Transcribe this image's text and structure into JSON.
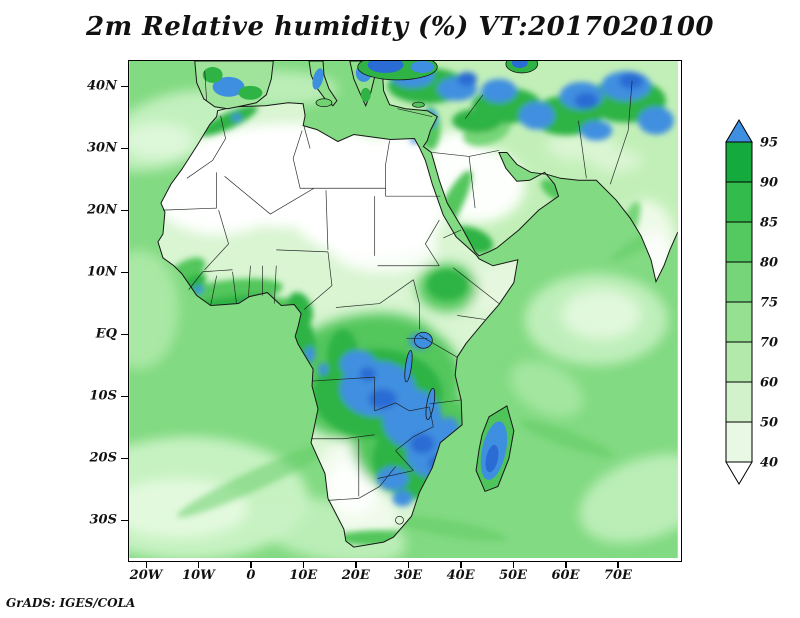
{
  "title": "2m Relative humidity (%) VT:2017020100",
  "attribution": "GrADS: IGES/COLA",
  "map": {
    "x_tick_labels": [
      "20W",
      "10W",
      "0",
      "10E",
      "20E",
      "30E",
      "40E",
      "50E",
      "60E",
      "70E"
    ],
    "y_tick_labels": [
      "40N",
      "30N",
      "20N",
      "10N",
      "EQ",
      "10S",
      "20S",
      "30S"
    ]
  },
  "colorbar": {
    "tick_labels_bottom_to_top": [
      "40",
      "50",
      "60",
      "70",
      "75",
      "80",
      "85",
      "90",
      "95"
    ],
    "segment_colors_bottom_to_top": [
      "#e8f8e4",
      "#d2f2cc",
      "#b4e9ac",
      "#96e092",
      "#76d578",
      "#54c95f",
      "#33bb4b",
      "#14aa3e"
    ],
    "below_min_color": "#ffffff",
    "above_max_color": "#3f8fe0"
  },
  "chart_data": {
    "type": "heatmap",
    "title": "2m Relative humidity (%) VT:2017020100",
    "variable": "2m relative humidity",
    "units": "%",
    "valid_time": "2017020100",
    "projection": "lat-lon map of Africa, Middle East and surrounding oceans",
    "x_ticks": [
      "20W",
      "10W",
      "0",
      "10E",
      "20E",
      "30E",
      "40E",
      "50E",
      "60E",
      "70E"
    ],
    "y_ticks": [
      "40N",
      "30N",
      "20N",
      "10N",
      "EQ",
      "10S",
      "20S",
      "30S"
    ],
    "contour_levels": [
      40,
      50,
      60,
      70,
      75,
      80,
      85,
      90,
      95
    ],
    "palette": [
      {
        "range": "< 40",
        "color": "#ffffff"
      },
      {
        "range": "40-50",
        "color": "#e8f8e4"
      },
      {
        "range": "50-60",
        "color": "#d2f2cc"
      },
      {
        "range": "60-70",
        "color": "#b4e9ac"
      },
      {
        "range": "70-75",
        "color": "#96e092"
      },
      {
        "range": "75-80",
        "color": "#76d578"
      },
      {
        "range": "80-85",
        "color": "#54c95f"
      },
      {
        "range": "85-90",
        "color": "#33bb4b"
      },
      {
        "range": "90-95",
        "color": "#14aa3e"
      },
      {
        "range": "> 95",
        "color": "#3f8fe0"
      }
    ],
    "legend_position": "right",
    "grid": false,
    "field_summary": [
      {
        "region": "Sahara and interior North Africa",
        "value_pct": "< 40 (white)"
      },
      {
        "region": "Arabian Peninsula interior",
        "value_pct": "< 40 - 50"
      },
      {
        "region": "Sahel transition band",
        "value_pct": "40 - 70"
      },
      {
        "region": "Gulf of Guinea coastal strip",
        "value_pct": "85 - 95"
      },
      {
        "region": "Congo basin, Zambia, Zimbabwe, Mozambique",
        "value_pct": "90 - > 95 (blue patches)"
      },
      {
        "region": "Madagascar interior",
        "value_pct": "> 95"
      },
      {
        "region": "Ethiopian highlands",
        "value_pct": "85 - 95"
      },
      {
        "region": "Horn of Africa / Somalia",
        "value_pct": "50 - 70"
      },
      {
        "region": "Kalahari / Namibia",
        "value_pct": "40 - 60"
      },
      {
        "region": "Atlantic and Indian Ocean",
        "value_pct": "70 - 85 with lighter swirls 55 - 70"
      },
      {
        "region": "Mediterranean Europe, Turkey, Levant, Iran highlands",
        "value_pct": "90 - > 95 (blue patches)"
      }
    ]
  }
}
